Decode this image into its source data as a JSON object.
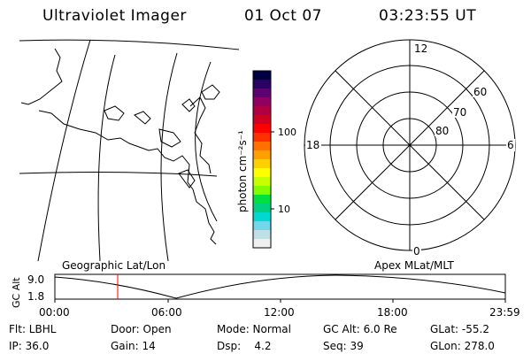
{
  "header": {
    "title": "Ultraviolet Imager",
    "date": "01 Oct 07",
    "time": "03:23:55 UT"
  },
  "colorbar": {
    "unit_label": "photon cm⁻²s⁻¹",
    "tick_100": "100",
    "tick_10": "10",
    "colors": [
      "#000040",
      "#2a0060",
      "#600070",
      "#900060",
      "#b00040",
      "#d00020",
      "#ff0000",
      "#ff3000",
      "#ff7000",
      "#ffa000",
      "#ffd000",
      "#ffff00",
      "#c8ff00",
      "#80ff00",
      "#00e040",
      "#00d080",
      "#00d8d0",
      "#70d8e8",
      "#c0e0e8",
      "#f0f0f0"
    ]
  },
  "polar": {
    "mlt_top": "12",
    "mlt_left": "18",
    "mlt_right": "6",
    "mlt_bottom": "0",
    "lat_60": "60",
    "lat_70": "70",
    "lat_80": "80"
  },
  "timeline": {
    "left_label": "Geographic Lat/Lon",
    "right_label": "Apex MLat/MLT",
    "axis_title": "GC Alt",
    "y_top": "9.0",
    "y_bottom": "1.8",
    "x_ticks": [
      "00:00",
      "06:00",
      "12:00",
      "18:00",
      "23:59"
    ],
    "cursor_color": "#ff0000"
  },
  "footer": {
    "row1": [
      "Flt: LBHL",
      "Door: Open",
      "Mode: Normal",
      "GC Alt: 6.0 Re",
      "GLat: -55.2"
    ],
    "row2": [
      "IP: 36.0",
      "Gain: 14",
      "Dsp:    4.2",
      "Seq: 39",
      "GLon: 278.0"
    ]
  }
}
